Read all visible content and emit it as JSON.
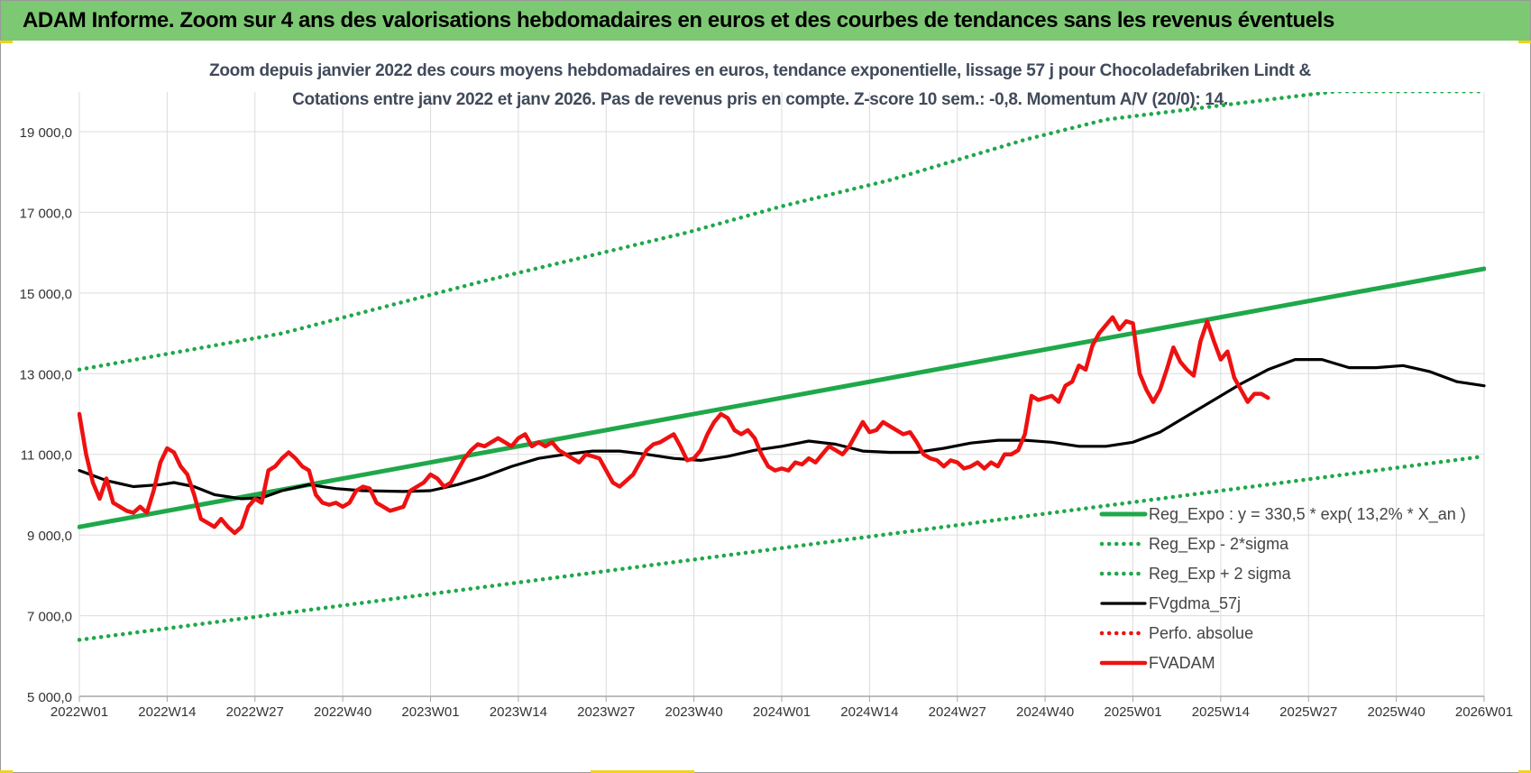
{
  "banner": {
    "title": "ADAM Informe. Zoom sur 4 ans des valorisations hebdomadaires en euros et des courbes de tendances sans les revenus éventuels"
  },
  "colors": {
    "banner_bg": "#7dc873",
    "reg_expo": "#1fa84a",
    "sigma_bands": "#1fa84a",
    "fvgdma": "#000000",
    "fvadam": "#ee1111",
    "perfo": "#ee1111",
    "title_text": "#404a5a"
  },
  "chart_data": {
    "type": "line",
    "title_line1": "Zoom depuis janvier 2022 des cours moyens hebdomadaires en euros, tendance exponentielle, lissage 57 j pour Chocoladefabriken Lindt &",
    "title_line2": "Cotations entre janv 2022 et janv 2026. Pas de revenus pris en compte. Z-score 10 sem.: -0,8. Momentum A/V (20/0): 14.",
    "ylim": [
      5000,
      19000
    ],
    "y_ticks": [
      5000,
      7000,
      9000,
      11000,
      13000,
      15000,
      17000,
      19000
    ],
    "y_tick_labels": [
      "5 000,0",
      "7 000,0",
      "9 000,0",
      "11 000,0",
      "13 000,0",
      "15 000,0",
      "17 000,0",
      "19 000,0"
    ],
    "x_range_weeks": [
      0,
      208
    ],
    "x_ticks": [
      {
        "w": 0,
        "label": "2022W01"
      },
      {
        "w": 13,
        "label": "2022W14"
      },
      {
        "w": 26,
        "label": "2022W27"
      },
      {
        "w": 39,
        "label": "2022W40"
      },
      {
        "w": 52,
        "label": "2023W01"
      },
      {
        "w": 65,
        "label": "2023W14"
      },
      {
        "w": 78,
        "label": "2023W27"
      },
      {
        "w": 91,
        "label": "2023W40"
      },
      {
        "w": 104,
        "label": "2024W01"
      },
      {
        "w": 117,
        "label": "2024W14"
      },
      {
        "w": 130,
        "label": "2024W27"
      },
      {
        "w": 143,
        "label": "2024W40"
      },
      {
        "w": 156,
        "label": "2025W01"
      },
      {
        "w": 169,
        "label": "2025W14"
      },
      {
        "w": 182,
        "label": "2025W27"
      },
      {
        "w": 195,
        "label": "2025W40"
      },
      {
        "w": 208,
        "label": "2026W01"
      }
    ],
    "grid": true,
    "legend_position": "bottom-right",
    "series": [
      {
        "name": "Reg_Expo : y = 330,5 * exp( 13,2% *  X_an )",
        "kind": "line",
        "color": "#1fa84a",
        "style": "solid",
        "points": [
          [
            0,
            9200
          ],
          [
            208,
            15600
          ]
        ]
      },
      {
        "name": "Reg_Exp - 2*sigma",
        "kind": "line",
        "color": "#1fa84a",
        "style": "dotted",
        "points": [
          [
            0,
            6400
          ],
          [
            208,
            10950
          ]
        ]
      },
      {
        "name": "Reg_Exp + 2 sigma",
        "kind": "line",
        "color": "#1fa84a",
        "style": "dotted",
        "points": [
          [
            0,
            13100
          ],
          [
            30,
            14000
          ],
          [
            60,
            15300
          ],
          [
            90,
            16500
          ],
          [
            104,
            17150
          ],
          [
            120,
            17800
          ],
          [
            140,
            18800
          ],
          [
            152,
            19300
          ],
          [
            186,
            20000
          ],
          [
            208,
            20000
          ]
        ]
      },
      {
        "name": "FVgdma_57j",
        "kind": "line",
        "color": "#000000",
        "style": "solid",
        "points": [
          [
            0,
            10600
          ],
          [
            4,
            10350
          ],
          [
            8,
            10200
          ],
          [
            12,
            10250
          ],
          [
            14,
            10300
          ],
          [
            17,
            10200
          ],
          [
            20,
            10000
          ],
          [
            24,
            9900
          ],
          [
            27,
            9920
          ],
          [
            30,
            10100
          ],
          [
            34,
            10250
          ],
          [
            38,
            10150
          ],
          [
            42,
            10100
          ],
          [
            48,
            10080
          ],
          [
            52,
            10100
          ],
          [
            56,
            10250
          ],
          [
            60,
            10450
          ],
          [
            64,
            10700
          ],
          [
            68,
            10900
          ],
          [
            72,
            11000
          ],
          [
            76,
            11080
          ],
          [
            80,
            11080
          ],
          [
            84,
            11000
          ],
          [
            88,
            10900
          ],
          [
            92,
            10850
          ],
          [
            96,
            10950
          ],
          [
            100,
            11100
          ],
          [
            104,
            11200
          ],
          [
            108,
            11330
          ],
          [
            112,
            11250
          ],
          [
            116,
            11080
          ],
          [
            120,
            11050
          ],
          [
            124,
            11050
          ],
          [
            128,
            11150
          ],
          [
            132,
            11280
          ],
          [
            136,
            11350
          ],
          [
            140,
            11350
          ],
          [
            144,
            11300
          ],
          [
            148,
            11200
          ],
          [
            152,
            11200
          ],
          [
            156,
            11300
          ],
          [
            160,
            11550
          ],
          [
            164,
            11950
          ],
          [
            168,
            12350
          ],
          [
            172,
            12750
          ],
          [
            176,
            13100
          ],
          [
            180,
            13350
          ],
          [
            184,
            13350
          ],
          [
            188,
            13150
          ],
          [
            192,
            13150
          ],
          [
            196,
            13200
          ],
          [
            200,
            13050
          ],
          [
            204,
            12800
          ],
          [
            208,
            12700
          ]
        ]
      },
      {
        "name": "Perfo. absolue",
        "kind": "legend-only",
        "color": "#ee1111",
        "style": "dotted",
        "points": []
      },
      {
        "name": "FVADAM",
        "kind": "line",
        "color": "#ee1111",
        "style": "solid-thick",
        "points": [
          [
            0,
            12000
          ],
          [
            1,
            11000
          ],
          [
            2,
            10300
          ],
          [
            3,
            9900
          ],
          [
            4,
            10400
          ],
          [
            5,
            9800
          ],
          [
            7,
            9600
          ],
          [
            8,
            9550
          ],
          [
            9,
            9700
          ],
          [
            10,
            9550
          ],
          [
            11,
            10100
          ],
          [
            12,
            10800
          ],
          [
            13,
            11150
          ],
          [
            14,
            11050
          ],
          [
            15,
            10700
          ],
          [
            16,
            10500
          ],
          [
            17,
            10000
          ],
          [
            18,
            9400
          ],
          [
            19,
            9300
          ],
          [
            20,
            9200
          ],
          [
            21,
            9400
          ],
          [
            22,
            9200
          ],
          [
            23,
            9050
          ],
          [
            24,
            9200
          ],
          [
            25,
            9700
          ],
          [
            26,
            9900
          ],
          [
            27,
            9800
          ],
          [
            28,
            10600
          ],
          [
            29,
            10700
          ],
          [
            30,
            10900
          ],
          [
            31,
            11050
          ],
          [
            32,
            10900
          ],
          [
            33,
            10700
          ],
          [
            34,
            10600
          ],
          [
            35,
            10000
          ],
          [
            36,
            9800
          ],
          [
            37,
            9750
          ],
          [
            38,
            9800
          ],
          [
            39,
            9700
          ],
          [
            40,
            9800
          ],
          [
            41,
            10100
          ],
          [
            42,
            10200
          ],
          [
            43,
            10150
          ],
          [
            44,
            9800
          ],
          [
            45,
            9700
          ],
          [
            46,
            9600
          ],
          [
            47,
            9650
          ],
          [
            48,
            9700
          ],
          [
            49,
            10100
          ],
          [
            50,
            10200
          ],
          [
            51,
            10300
          ],
          [
            52,
            10500
          ],
          [
            53,
            10400
          ],
          [
            54,
            10200
          ],
          [
            55,
            10300
          ],
          [
            56,
            10600
          ],
          [
            57,
            10900
          ],
          [
            58,
            11100
          ],
          [
            59,
            11250
          ],
          [
            60,
            11200
          ],
          [
            61,
            11300
          ],
          [
            62,
            11400
          ],
          [
            63,
            11300
          ],
          [
            64,
            11200
          ],
          [
            65,
            11400
          ],
          [
            66,
            11500
          ],
          [
            67,
            11200
          ],
          [
            68,
            11300
          ],
          [
            69,
            11200
          ],
          [
            70,
            11300
          ],
          [
            71,
            11100
          ],
          [
            72,
            11000
          ],
          [
            73,
            10900
          ],
          [
            74,
            10800
          ],
          [
            75,
            11000
          ],
          [
            76,
            10950
          ],
          [
            77,
            10900
          ],
          [
            78,
            10600
          ],
          [
            79,
            10300
          ],
          [
            80,
            10200
          ],
          [
            81,
            10350
          ],
          [
            82,
            10500
          ],
          [
            83,
            10800
          ],
          [
            84,
            11100
          ],
          [
            85,
            11250
          ],
          [
            86,
            11300
          ],
          [
            87,
            11400
          ],
          [
            88,
            11500
          ],
          [
            89,
            11200
          ],
          [
            90,
            10850
          ],
          [
            91,
            10900
          ],
          [
            92,
            11100
          ],
          [
            93,
            11500
          ],
          [
            94,
            11800
          ],
          [
            95,
            12000
          ],
          [
            96,
            11900
          ],
          [
            97,
            11600
          ],
          [
            98,
            11500
          ],
          [
            99,
            11600
          ],
          [
            100,
            11400
          ],
          [
            101,
            11000
          ],
          [
            102,
            10700
          ],
          [
            103,
            10600
          ],
          [
            104,
            10650
          ],
          [
            105,
            10600
          ],
          [
            106,
            10800
          ],
          [
            107,
            10750
          ],
          [
            108,
            10900
          ],
          [
            109,
            10800
          ],
          [
            110,
            11000
          ],
          [
            111,
            11200
          ],
          [
            112,
            11100
          ],
          [
            113,
            11000
          ],
          [
            114,
            11200
          ],
          [
            115,
            11500
          ],
          [
            116,
            11800
          ],
          [
            117,
            11550
          ],
          [
            118,
            11600
          ],
          [
            119,
            11800
          ],
          [
            120,
            11700
          ],
          [
            121,
            11600
          ],
          [
            122,
            11500
          ],
          [
            123,
            11550
          ],
          [
            124,
            11300
          ],
          [
            125,
            11000
          ],
          [
            126,
            10900
          ],
          [
            127,
            10850
          ],
          [
            128,
            10700
          ],
          [
            129,
            10850
          ],
          [
            130,
            10800
          ],
          [
            131,
            10650
          ],
          [
            132,
            10700
          ],
          [
            133,
            10800
          ],
          [
            134,
            10650
          ],
          [
            135,
            10800
          ],
          [
            136,
            10700
          ],
          [
            137,
            11000
          ],
          [
            138,
            11000
          ],
          [
            139,
            11100
          ],
          [
            140,
            11500
          ],
          [
            141,
            12450
          ],
          [
            142,
            12350
          ],
          [
            143,
            12400
          ],
          [
            144,
            12450
          ],
          [
            145,
            12300
          ],
          [
            146,
            12700
          ],
          [
            147,
            12800
          ],
          [
            148,
            13200
          ],
          [
            149,
            13100
          ],
          [
            150,
            13700
          ],
          [
            151,
            14000
          ],
          [
            152,
            14200
          ],
          [
            153,
            14400
          ],
          [
            154,
            14100
          ],
          [
            155,
            14300
          ],
          [
            156,
            14250
          ],
          [
            157,
            13000
          ],
          [
            158,
            12600
          ],
          [
            159,
            12300
          ],
          [
            160,
            12600
          ],
          [
            161,
            13100
          ],
          [
            162,
            13650
          ],
          [
            163,
            13300
          ],
          [
            164,
            13100
          ],
          [
            165,
            12950
          ],
          [
            166,
            13800
          ],
          [
            167,
            14300
          ],
          [
            168,
            13800
          ],
          [
            169,
            13350
          ],
          [
            170,
            13550
          ],
          [
            171,
            12900
          ],
          [
            172,
            12600
          ],
          [
            173,
            12300
          ],
          [
            174,
            12500
          ],
          [
            175,
            12500
          ],
          [
            176,
            12400
          ]
        ]
      }
    ]
  }
}
